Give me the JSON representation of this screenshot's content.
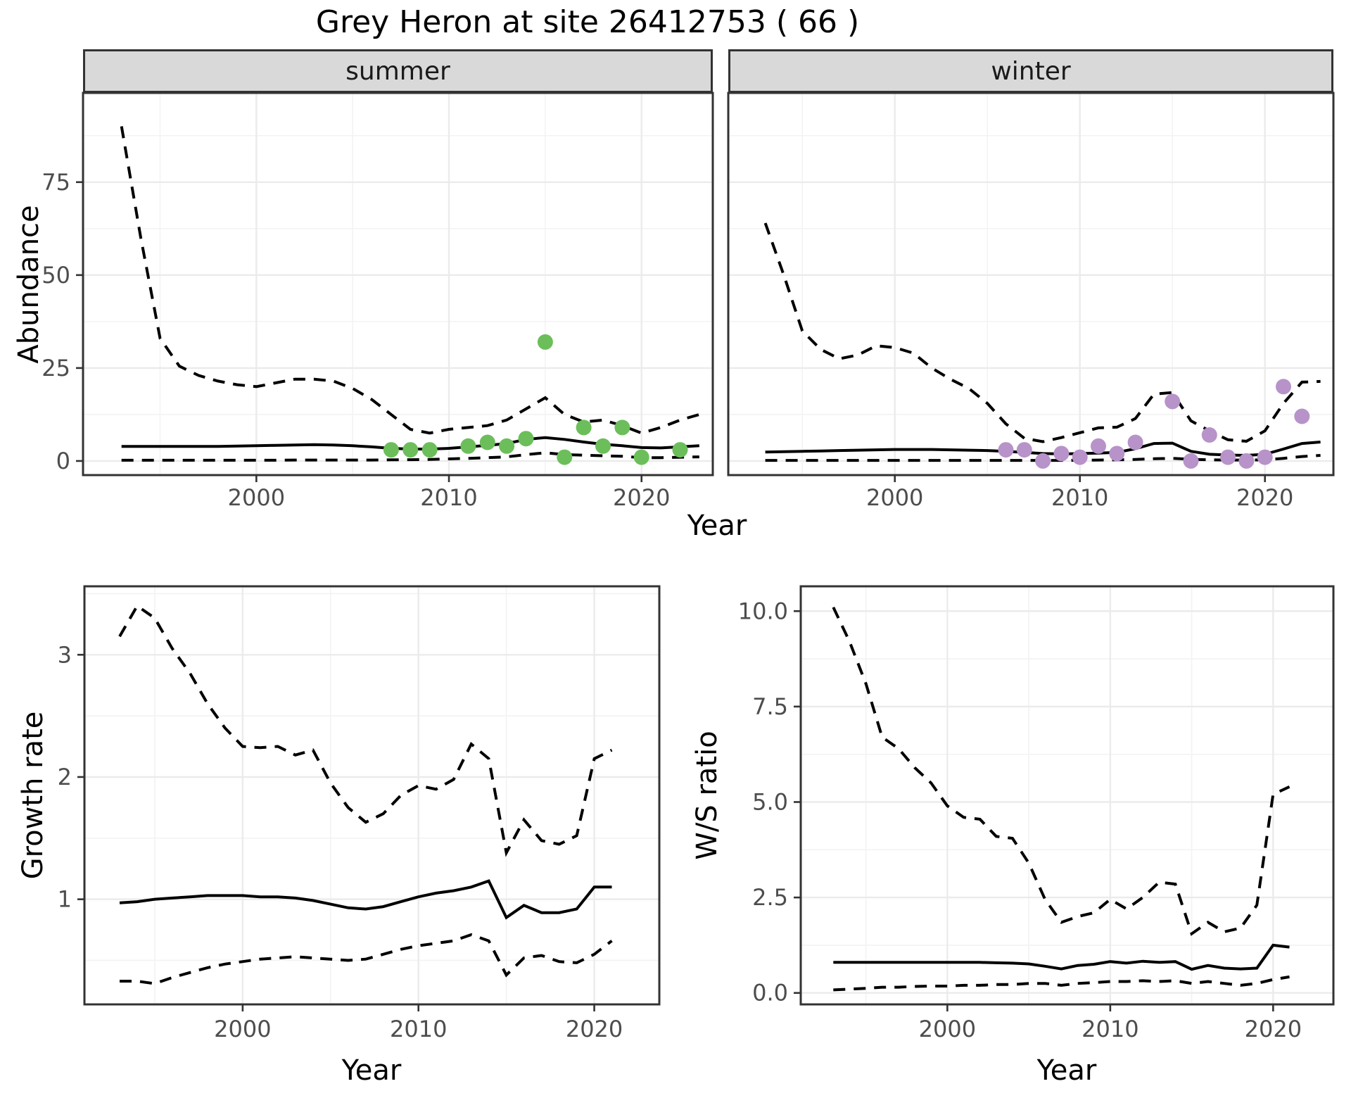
{
  "title": "Grey Heron at site 26412753 ( 66 )",
  "axis_titles": {
    "abundance": "Abundance",
    "growth_rate": "Growth rate",
    "ws_ratio": "W/S ratio",
    "year": "Year"
  },
  "facets": {
    "summer": "summer",
    "winter": "winter"
  },
  "colors": {
    "summer_points": "#6CBE5B",
    "winter_points": "#B793C9",
    "line": "#000000",
    "strip_fill": "#D9D9D9",
    "panel_border": "#333333",
    "grid_major": "#EBEBEB",
    "grid_minor": "#F3F3F3",
    "tick_mark": "#333333",
    "tick_label": "#4D4D4D",
    "background": "#FFFFFF"
  },
  "chart_data": [
    {
      "id": "abundance_summer",
      "type": "line",
      "facet": "summer",
      "xlabel": "Year",
      "ylabel": "Abundance",
      "xlim": [
        1991,
        2023.7
      ],
      "ylim": [
        -3.8,
        99
      ],
      "x_ticks": {
        "major": [
          2000,
          2010,
          2020
        ],
        "minor": [
          1995,
          2005,
          2015
        ],
        "labels": [
          "2000",
          "2010",
          "2020"
        ]
      },
      "y_ticks": {
        "major": [
          0,
          25,
          50,
          75
        ],
        "minor": [
          12.5,
          37.5,
          62.5,
          87.5
        ],
        "labels": [
          "0",
          "25",
          "50",
          "75"
        ]
      },
      "years": [
        1993,
        1994,
        1995,
        1996,
        1997,
        1998,
        1999,
        2000,
        2001,
        2002,
        2003,
        2004,
        2005,
        2006,
        2007,
        2008,
        2009,
        2010,
        2011,
        2012,
        2013,
        2014,
        2015,
        2016,
        2017,
        2018,
        2019,
        2020,
        2021,
        2022,
        2023
      ],
      "series": [
        {
          "name": "upper 95% CI",
          "style": "dashed",
          "values": [
            90,
            60,
            33,
            25.5,
            23,
            21.5,
            20.5,
            20,
            21,
            22,
            22,
            21.5,
            19.5,
            16.5,
            12.5,
            8.5,
            7.5,
            8.5,
            9,
            9.5,
            11,
            14,
            17,
            12.5,
            10.5,
            11,
            9.5,
            7.5,
            9,
            11,
            12.5
          ]
        },
        {
          "name": "median fit",
          "style": "solid",
          "values": [
            3.9,
            3.9,
            3.9,
            3.9,
            3.9,
            3.9,
            4.0,
            4.1,
            4.2,
            4.3,
            4.4,
            4.3,
            4.1,
            3.8,
            3.4,
            3.2,
            3.2,
            3.4,
            3.8,
            4.2,
            4.7,
            5.8,
            6.3,
            5.8,
            5.1,
            4.5,
            4.1,
            3.6,
            3.5,
            3.8,
            4.1
          ]
        },
        {
          "name": "lower 95% CI",
          "style": "dashed",
          "values": [
            0.2,
            0.2,
            0.2,
            0.2,
            0.2,
            0.2,
            0.2,
            0.2,
            0.2,
            0.25,
            0.25,
            0.25,
            0.25,
            0.25,
            0.3,
            0.35,
            0.4,
            0.55,
            0.7,
            0.9,
            1.1,
            1.7,
            2.2,
            1.7,
            1.55,
            1.4,
            1.25,
            0.9,
            0.9,
            1.0,
            1.1
          ]
        }
      ],
      "observed_points": {
        "name": "summer counts",
        "color": "#6CBE5B",
        "data": [
          [
            2007,
            3
          ],
          [
            2008,
            3
          ],
          [
            2009,
            3
          ],
          [
            2011,
            4
          ],
          [
            2012,
            5
          ],
          [
            2013,
            4
          ],
          [
            2014,
            6
          ],
          [
            2015,
            32
          ],
          [
            2016,
            1
          ],
          [
            2017,
            9
          ],
          [
            2018,
            4
          ],
          [
            2019,
            9
          ],
          [
            2020,
            1
          ],
          [
            2022,
            3
          ]
        ]
      }
    },
    {
      "id": "abundance_winter",
      "type": "line",
      "facet": "winter",
      "xlabel": "Year",
      "ylabel": "Abundance",
      "xlim": [
        1991,
        2023.7
      ],
      "ylim": [
        -3.8,
        99
      ],
      "x_ticks": {
        "major": [
          2000,
          2010,
          2020
        ],
        "minor": [
          1995,
          2005,
          2015
        ],
        "labels": [
          "2000",
          "2010",
          "2020"
        ]
      },
      "y_ticks": {
        "major": [
          0,
          25,
          50,
          75
        ],
        "minor": [
          12.5,
          37.5,
          62.5,
          87.5
        ],
        "labels": [
          "0",
          "25",
          "50",
          "75"
        ]
      },
      "years": [
        1993,
        1994,
        1995,
        1996,
        1997,
        1998,
        1999,
        2000,
        2001,
        2002,
        2003,
        2004,
        2005,
        2006,
        2007,
        2008,
        2009,
        2010,
        2011,
        2012,
        2013,
        2014,
        2015,
        2016,
        2017,
        2018,
        2019,
        2020,
        2021,
        2022,
        2023
      ],
      "series": [
        {
          "name": "upper 95% CI",
          "style": "dashed",
          "values": [
            64,
            50,
            35,
            30,
            27.5,
            28.5,
            31,
            30.5,
            29,
            25,
            22,
            19.5,
            15.5,
            10,
            6.1,
            5.2,
            6.3,
            7.6,
            8.9,
            9.1,
            11.4,
            18,
            18.4,
            10.8,
            8.1,
            5.7,
            5.3,
            8.1,
            15.5,
            21.2,
            21.4
          ]
        },
        {
          "name": "median fit",
          "style": "solid",
          "values": [
            2.4,
            2.5,
            2.6,
            2.7,
            2.8,
            2.9,
            3.0,
            3.1,
            3.1,
            3.1,
            3.0,
            2.9,
            2.8,
            2.6,
            2.3,
            2.0,
            1.9,
            2.0,
            2.1,
            2.3,
            3.3,
            4.7,
            4.8,
            2.6,
            1.8,
            1.6,
            1.5,
            1.8,
            3.2,
            4.7,
            5.1
          ]
        },
        {
          "name": "lower 95% CI",
          "style": "dashed",
          "values": [
            0.15,
            0.15,
            0.15,
            0.15,
            0.15,
            0.15,
            0.15,
            0.15,
            0.15,
            0.15,
            0.15,
            0.15,
            0.15,
            0.15,
            0.15,
            0.15,
            0.15,
            0.2,
            0.25,
            0.3,
            0.4,
            0.6,
            0.7,
            0.45,
            0.3,
            0.25,
            0.25,
            0.3,
            0.7,
            1.2,
            1.5
          ]
        }
      ],
      "observed_points": {
        "name": "winter counts",
        "color": "#B793C9",
        "data": [
          [
            2006,
            3
          ],
          [
            2007,
            3
          ],
          [
            2008,
            0
          ],
          [
            2009,
            2
          ],
          [
            2010,
            1
          ],
          [
            2011,
            4
          ],
          [
            2012,
            2
          ],
          [
            2013,
            5
          ],
          [
            2015,
            16
          ],
          [
            2016,
            0
          ],
          [
            2017,
            7
          ],
          [
            2018,
            1
          ],
          [
            2019,
            0
          ],
          [
            2020,
            1
          ],
          [
            2021,
            20
          ],
          [
            2022,
            12
          ]
        ]
      }
    },
    {
      "id": "growth_rate",
      "type": "line",
      "xlabel": "Year",
      "ylabel": "Growth rate",
      "xlim": [
        1991,
        2023.7
      ],
      "ylim": [
        0.14,
        3.56
      ],
      "x_ticks": {
        "major": [
          2000,
          2010,
          2020
        ],
        "minor": [
          1995,
          2005,
          2015
        ],
        "labels": [
          "2000",
          "2010",
          "2020"
        ]
      },
      "y_ticks": {
        "major": [
          1,
          2,
          3
        ],
        "minor": [
          0.5,
          1.5,
          2.5,
          3.5
        ],
        "labels": [
          "1",
          "2",
          "3"
        ]
      },
      "years": [
        1993,
        1994,
        1995,
        1996,
        1997,
        1998,
        1999,
        2000,
        2001,
        2002,
        2003,
        2004,
        2005,
        2006,
        2007,
        2008,
        2009,
        2010,
        2011,
        2012,
        2013,
        2014,
        2015,
        2016,
        2017,
        2018,
        2019,
        2020,
        2021
      ],
      "series": [
        {
          "name": "upper 95% CI",
          "style": "dashed",
          "values": [
            3.15,
            3.4,
            3.3,
            3.05,
            2.85,
            2.6,
            2.4,
            2.25,
            2.24,
            2.25,
            2.18,
            2.22,
            1.95,
            1.75,
            1.63,
            1.7,
            1.85,
            1.93,
            1.9,
            1.98,
            2.27,
            2.15,
            1.38,
            1.65,
            1.48,
            1.45,
            1.52,
            2.15,
            2.22
          ]
        },
        {
          "name": "median fit",
          "style": "solid",
          "values": [
            0.97,
            0.98,
            1.0,
            1.01,
            1.02,
            1.03,
            1.03,
            1.03,
            1.02,
            1.02,
            1.01,
            0.99,
            0.96,
            0.93,
            0.92,
            0.94,
            0.98,
            1.02,
            1.05,
            1.07,
            1.1,
            1.15,
            0.85,
            0.95,
            0.89,
            0.89,
            0.92,
            1.1,
            1.1
          ]
        },
        {
          "name": "lower 95% CI",
          "style": "dashed",
          "values": [
            0.33,
            0.33,
            0.31,
            0.36,
            0.4,
            0.44,
            0.47,
            0.49,
            0.51,
            0.52,
            0.53,
            0.52,
            0.51,
            0.5,
            0.51,
            0.55,
            0.59,
            0.62,
            0.64,
            0.66,
            0.71,
            0.66,
            0.38,
            0.52,
            0.54,
            0.49,
            0.48,
            0.55,
            0.66
          ]
        }
      ]
    },
    {
      "id": "ws_ratio",
      "type": "line",
      "xlabel": "Year",
      "ylabel": "W/S ratio",
      "xlim": [
        1991,
        2023.7
      ],
      "ylim": [
        -0.3,
        10.65
      ],
      "x_ticks": {
        "major": [
          2000,
          2010,
          2020
        ],
        "minor": [
          1995,
          2005,
          2015
        ],
        "labels": [
          "2000",
          "2010",
          "2020"
        ]
      },
      "y_ticks": {
        "major": [
          0,
          2.5,
          5,
          7.5,
          10
        ],
        "minor": [
          1.25,
          3.75,
          6.25,
          8.75
        ],
        "labels": [
          "0.0",
          "2.5",
          "5.0",
          "7.5",
          "10.0"
        ]
      },
      "years": [
        1993,
        1994,
        1995,
        1996,
        1997,
        1998,
        1999,
        2000,
        2001,
        2002,
        2003,
        2004,
        2005,
        2006,
        2007,
        2008,
        2009,
        2010,
        2011,
        2012,
        2013,
        2014,
        2015,
        2016,
        2017,
        2018,
        2019,
        2020,
        2021
      ],
      "series": [
        {
          "name": "upper 95% CI",
          "style": "dashed",
          "values": [
            10.1,
            9.2,
            8.1,
            6.7,
            6.4,
            5.9,
            5.5,
            4.9,
            4.6,
            4.55,
            4.1,
            4.05,
            3.4,
            2.45,
            1.85,
            2.0,
            2.1,
            2.45,
            2.2,
            2.5,
            2.9,
            2.85,
            1.55,
            1.85,
            1.6,
            1.7,
            2.3,
            5.2,
            5.4
          ]
        },
        {
          "name": "median fit",
          "style": "solid",
          "values": [
            0.8,
            0.8,
            0.8,
            0.8,
            0.8,
            0.8,
            0.8,
            0.8,
            0.8,
            0.8,
            0.79,
            0.78,
            0.76,
            0.7,
            0.63,
            0.72,
            0.75,
            0.82,
            0.78,
            0.83,
            0.8,
            0.82,
            0.62,
            0.72,
            0.65,
            0.63,
            0.65,
            1.25,
            1.2
          ]
        },
        {
          "name": "lower 95% CI",
          "style": "dashed",
          "values": [
            0.08,
            0.1,
            0.12,
            0.15,
            0.15,
            0.17,
            0.18,
            0.18,
            0.2,
            0.2,
            0.22,
            0.22,
            0.25,
            0.25,
            0.2,
            0.25,
            0.27,
            0.3,
            0.3,
            0.32,
            0.3,
            0.32,
            0.25,
            0.3,
            0.25,
            0.2,
            0.25,
            0.35,
            0.42
          ]
        }
      ]
    }
  ]
}
